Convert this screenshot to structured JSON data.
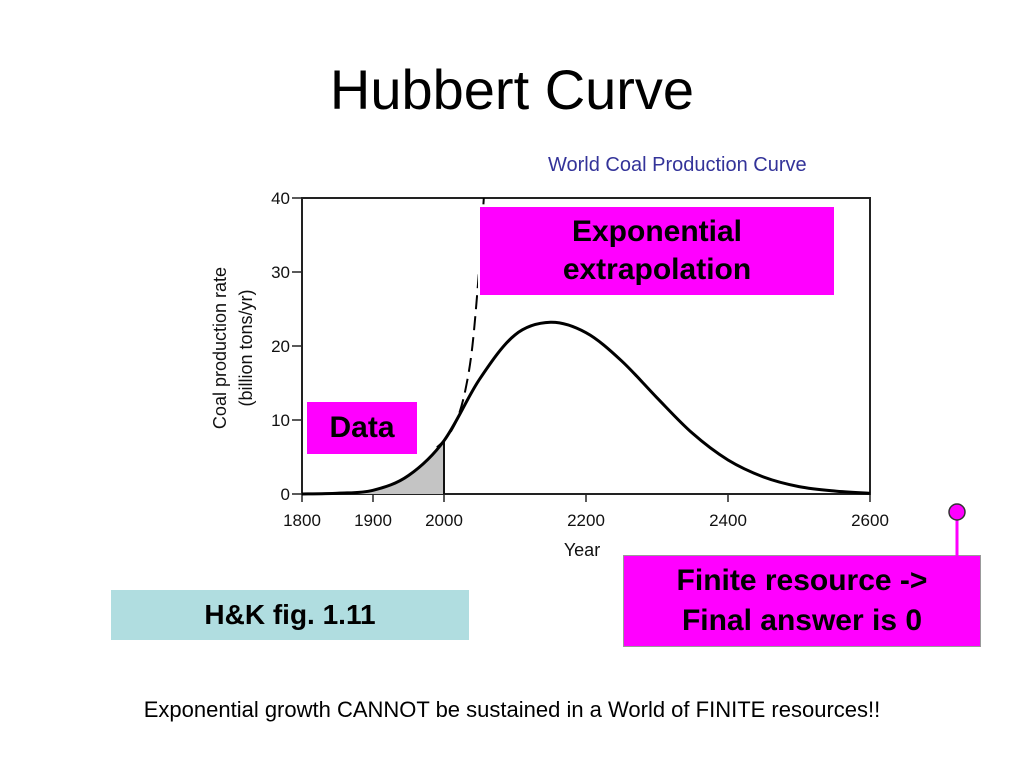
{
  "slide": {
    "title": "Hubbert Curve",
    "subtitle": "World Coal Production Curve",
    "callouts": {
      "exponential": "Exponential\nextrapolation",
      "data": "Data",
      "finite": "Finite resource ->\nFinal answer is 0",
      "source": "H&K fig. 1.11"
    },
    "footer": "Exponential growth CANNOT be sustained in a World of FINITE resources!!",
    "colors": {
      "callout": "#ff00ff",
      "source_box": "#b0dde0",
      "subtitle": "#333399"
    }
  },
  "chart_data": {
    "type": "line",
    "xlabel": "Year",
    "ylabel": "Coal production rate",
    "ylabel_units": "(billion tons/yr)",
    "xlim": [
      1800,
      2600
    ],
    "ylim": [
      0,
      40
    ],
    "x_ticks": [
      1800,
      1900,
      2000,
      2200,
      2400,
      2600
    ],
    "y_ticks": [
      0,
      10,
      20,
      30,
      40
    ],
    "grid": false,
    "data_region": {
      "from": 1800,
      "to": 2000
    },
    "series": [
      {
        "style": "solid",
        "x": [
          1800,
          1850,
          1900,
          1950,
          2000,
          2050,
          2100,
          2150,
          2200,
          2250,
          2300,
          2350,
          2400,
          2450,
          2500,
          2550,
          2600
        ],
        "y": [
          0,
          0.1,
          0.5,
          2.5,
          7.2,
          15.5,
          21.5,
          23.2,
          21.8,
          18.0,
          13.0,
          8.2,
          4.6,
          2.3,
          1.0,
          0.4,
          0.1
        ]
      },
      {
        "style": "dashed",
        "x": [
          1990,
          2000,
          2010,
          2020,
          2030,
          2040,
          2050,
          2056
        ],
        "y": [
          6.3,
          7.2,
          8.5,
          10.5,
          14.0,
          20.0,
          31.0,
          40.0
        ]
      }
    ]
  }
}
